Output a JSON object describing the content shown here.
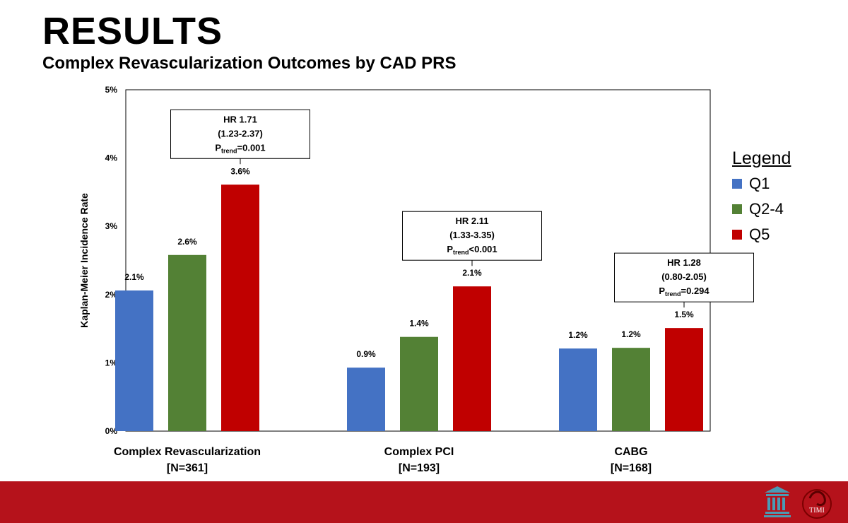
{
  "slide": {
    "title": "RESULTS",
    "subtitle": "Complex Revascularization Outcomes by CAD PRS",
    "footer_color": "#b5121b",
    "logo_text": "TIMI"
  },
  "chart_data": {
    "type": "bar",
    "ylabel": "Kaplan-Meier Incidence Rate",
    "ylim": [
      0,
      5
    ],
    "yticks": [
      "0%",
      "1%",
      "2%",
      "3%",
      "4%",
      "5%"
    ],
    "grid": false,
    "legend": {
      "title": "Legend",
      "placement": "right"
    },
    "categories": [
      {
        "name": "Complex Revascularization",
        "n": "[N=361]"
      },
      {
        "name": "Complex PCI",
        "n": "[N=193]"
      },
      {
        "name": "CABG",
        "n": "[N=168]"
      }
    ],
    "series": [
      {
        "name": "Q1",
        "color": "#4472c4",
        "values": [
          2.06,
          0.93,
          1.21
        ],
        "labels": [
          "2.1%",
          "0.9%",
          "1.2%"
        ]
      },
      {
        "name": "Q2-4",
        "color": "#538135",
        "values": [
          2.58,
          1.38,
          1.22
        ],
        "labels": [
          "2.6%",
          "1.4%",
          "1.2%"
        ]
      },
      {
        "name": "Q5",
        "color": "#c00000",
        "values": [
          3.61,
          2.12,
          1.51
        ],
        "labels": [
          "3.6%",
          "2.1%",
          "1.5%"
        ]
      }
    ],
    "annotations": [
      {
        "hr": "HR 1.71",
        "ci": "(1.23-2.37)",
        "p_sub": "trend",
        "p_rest": "=0.001"
      },
      {
        "hr": "HR 2.11",
        "ci": "(1.33-3.35)",
        "p_sub": "trend",
        "p_rest": "<0.001"
      },
      {
        "hr": "HR 1.28",
        "ci": "(0.80-2.05)",
        "p_sub": "trend",
        "p_rest": "=0.294"
      }
    ]
  }
}
